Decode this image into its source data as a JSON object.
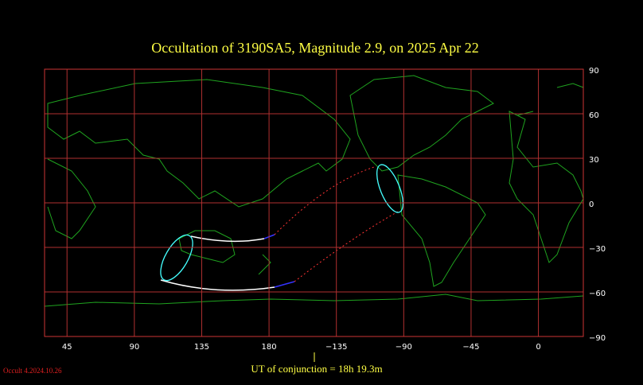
{
  "chart_data": {
    "type": "map",
    "title": "Occultation  of  3190SA5,      Magnitude 2.9,   on  2025 Apr 22",
    "xlim": [
      30,
      390
    ],
    "xticks": [
      45,
      90,
      135,
      180,
      {
        "value": 225,
        "label": "−135"
      },
      {
        "value": 270,
        "label": "−90"
      },
      {
        "value": 315,
        "label": "−45"
      },
      {
        "value": 360,
        "label": "0"
      }
    ],
    "ylim": [
      -90,
      90
    ],
    "yticks": [
      90,
      60,
      30,
      0,
      {
        "value": -30,
        "label": "−30"
      },
      {
        "value": -60,
        "label": "−60"
      },
      {
        "value": -90,
        "label": "−90"
      }
    ],
    "grid": true,
    "footer": "UT of conjunction = 18h 19.3m",
    "version": "Occult 4.2024.10.26"
  }
}
